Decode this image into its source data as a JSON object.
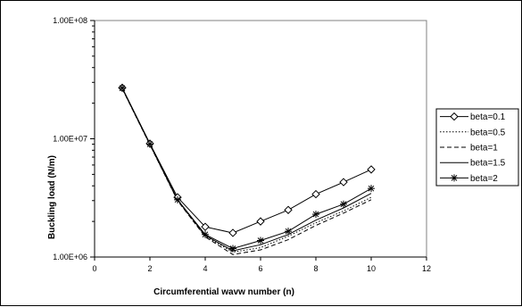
{
  "chart_data": {
    "type": "line",
    "title": "",
    "xlabel": "Circumferential wavw number (n)",
    "ylabel": "Buckling load (N/m)",
    "x_scale": "linear",
    "y_scale": "log",
    "xlim": [
      0,
      12
    ],
    "ylim": [
      1000000,
      100000000
    ],
    "x_ticks": [
      0,
      2,
      4,
      6,
      8,
      10,
      12
    ],
    "x_tick_labels": [
      "0",
      "2",
      "4",
      "6",
      "8",
      "10",
      "12"
    ],
    "y_ticks": [
      1000000,
      10000000,
      100000000
    ],
    "y_tick_labels": [
      "1.00E+06",
      "1.00E+07",
      "1.00E+08"
    ],
    "grid": false,
    "legend_position": "right",
    "x": [
      1,
      2,
      3,
      4,
      5,
      6,
      7,
      8,
      9,
      10
    ],
    "series": [
      {
        "name": "beta=0.1",
        "marker": "diamond",
        "dash": "solid",
        "values": [
          27000000,
          9100000,
          3200000,
          1800000,
          1600000,
          2000000,
          2500000,
          3400000,
          4300000,
          5500000
        ]
      },
      {
        "name": "beta=0.5",
        "marker": "none",
        "dash": "dotted",
        "values": [
          26500000,
          8900000,
          3000000,
          1500000,
          1100000,
          1200000,
          1500000,
          1950000,
          2450000,
          3200000
        ]
      },
      {
        "name": "beta=1",
        "marker": "none",
        "dash": "dashed",
        "values": [
          26500000,
          8900000,
          3000000,
          1480000,
          1050000,
          1150000,
          1400000,
          1850000,
          2350000,
          3050000
        ]
      },
      {
        "name": "beta=1.5",
        "marker": "none",
        "dash": "solid",
        "values": [
          26700000,
          9000000,
          3050000,
          1520000,
          1130000,
          1270000,
          1550000,
          2050000,
          2600000,
          3450000
        ]
      },
      {
        "name": "beta=2",
        "marker": "star",
        "dash": "solid",
        "values": [
          26800000,
          9000000,
          3050000,
          1550000,
          1180000,
          1380000,
          1650000,
          2300000,
          2800000,
          3800000
        ]
      }
    ]
  }
}
